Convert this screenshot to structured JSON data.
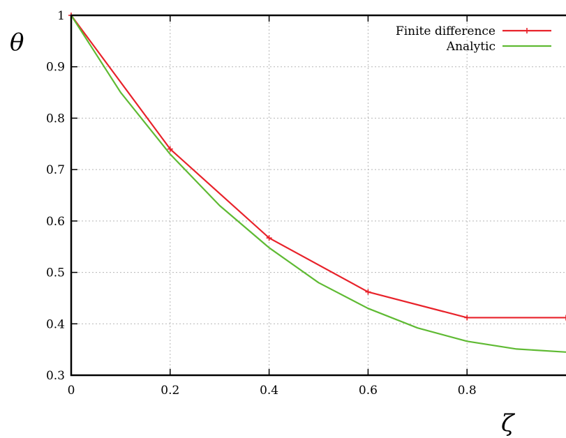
{
  "chart_data": {
    "type": "line",
    "xlabel": "ζ",
    "ylabel": "θ",
    "xlim": [
      0,
      1
    ],
    "ylim": [
      0.3,
      1
    ],
    "xticks": [
      "0",
      "0.2",
      "0.4",
      "0.6",
      "0.8"
    ],
    "yticks": [
      "0.3",
      "0.4",
      "0.5",
      "0.6",
      "0.7",
      "0.8",
      "0.9",
      "1"
    ],
    "grid": true,
    "legend_position": "top-right",
    "series": [
      {
        "name": "Finite difference",
        "color": "#e8222a",
        "marker": "plus",
        "x": [
          0,
          0.2,
          0.4,
          0.6,
          0.8,
          1.0
        ],
        "y": [
          1.0,
          0.74,
          0.567,
          0.462,
          0.412,
          0.412
        ]
      },
      {
        "name": "Analytic",
        "color": "#5fba33",
        "marker": "none",
        "x": [
          0,
          0.1,
          0.2,
          0.3,
          0.4,
          0.5,
          0.6,
          0.7,
          0.8,
          0.9,
          1.0
        ],
        "y": [
          1.0,
          0.85,
          0.73,
          0.63,
          0.548,
          0.48,
          0.43,
          0.392,
          0.366,
          0.351,
          0.345
        ]
      }
    ]
  }
}
